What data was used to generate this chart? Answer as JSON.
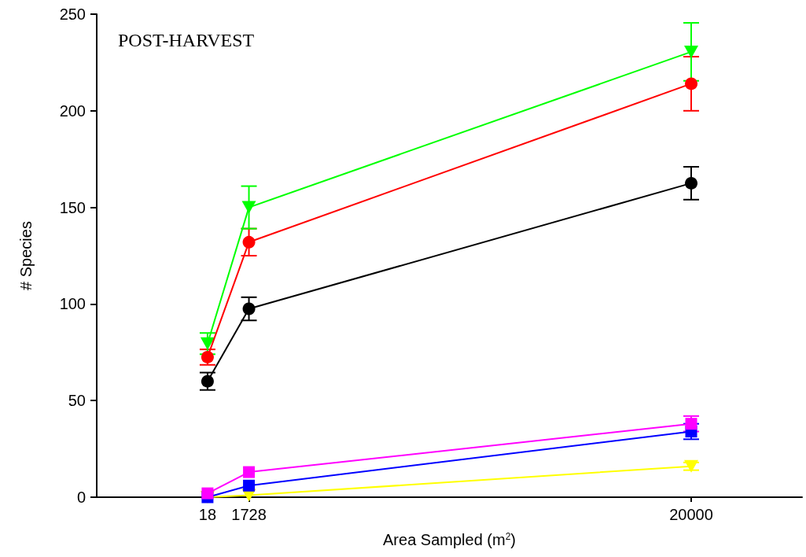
{
  "chart_data": {
    "type": "line",
    "title": "POST-HARVEST",
    "xlabel": "Area Sampled (m$^{2}$)",
    "ylabel": "# Species",
    "x": [
      18,
      1728,
      20000
    ],
    "series": [
      {
        "color": "#000000",
        "marker": "circle",
        "values": [
          60,
          97.5,
          162.5
        ],
        "errors": [
          4.5,
          6,
          8.5
        ]
      },
      {
        "color": "#ff0000",
        "marker": "circle",
        "values": [
          72.5,
          132,
          214
        ],
        "errors": [
          4,
          7,
          14
        ]
      },
      {
        "color": "#00ff00",
        "marker": "triangle-down",
        "values": [
          79.5,
          150,
          230.5
        ],
        "errors": [
          5.5,
          11,
          15
        ]
      },
      {
        "color": "#ff00ff",
        "marker": "square",
        "values": [
          2,
          13,
          38
        ],
        "errors": [
          null,
          null,
          4
        ]
      },
      {
        "color": "#0000ff",
        "marker": "square",
        "values": [
          0,
          6,
          34
        ],
        "errors": [
          null,
          null,
          4
        ]
      },
      {
        "color": "#ffff00",
        "marker": "triangle-down",
        "values": [
          0,
          1,
          16
        ],
        "errors": [
          null,
          null,
          2
        ]
      }
    ],
    "xlim": [
      -4560,
      24580
    ],
    "xticks": [
      18,
      1728,
      20000
    ],
    "ylim": [
      0,
      250
    ],
    "yticks": [
      0,
      50,
      100,
      150,
      200,
      250
    ],
    "grid": false
  }
}
